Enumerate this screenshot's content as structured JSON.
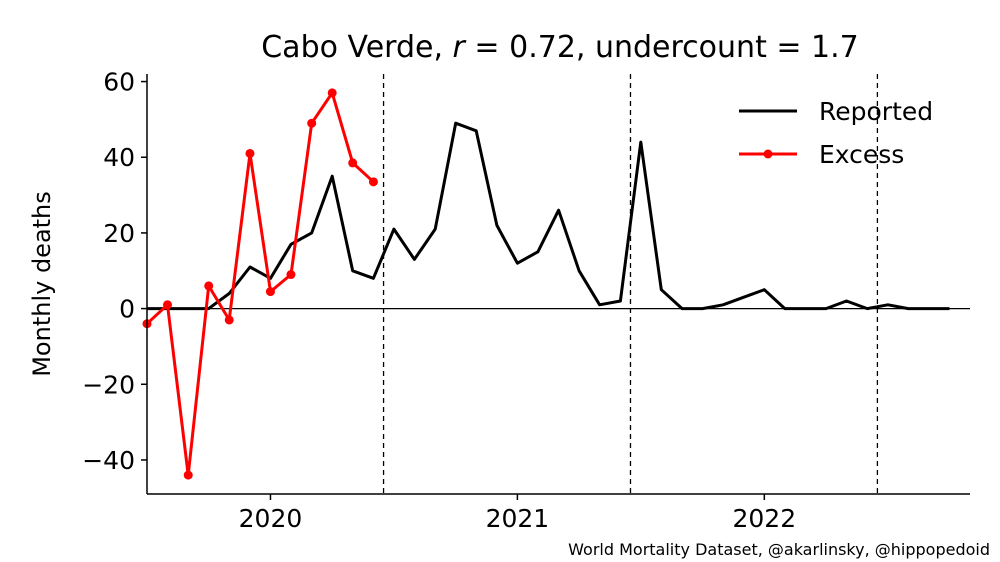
{
  "chart_data": {
    "type": "line",
    "title": {
      "country": "Cabo Verde",
      "r_symbol": "r",
      "r_value": "0.72",
      "undercount_label": "undercount",
      "undercount_value": "1.7"
    },
    "ylabel": "Monthly deaths",
    "ylim": [
      -49,
      62
    ],
    "yticks": [
      {
        "value": 60,
        "label": "60"
      },
      {
        "value": 40,
        "label": "40"
      },
      {
        "value": 20,
        "label": "20"
      },
      {
        "value": 0,
        "label": "0"
      },
      {
        "value": -20,
        "label": "−20"
      },
      {
        "value": -40,
        "label": "−40"
      }
    ],
    "xlim": [
      2019.5,
      2022.833
    ],
    "xticks": [
      {
        "value": 2020.0,
        "label": "2020"
      },
      {
        "value": 2021.0,
        "label": "2021"
      },
      {
        "value": 2022.0,
        "label": "2022"
      }
    ],
    "vlines": [
      2020.458,
      2021.458,
      2022.458
    ],
    "zero_line": true,
    "grid": false,
    "legend_position": "top-right",
    "series": [
      {
        "name": "Reported",
        "color": "#000000",
        "markers": false,
        "points": [
          [
            2019.5,
            0
          ],
          [
            2019.583,
            0
          ],
          [
            2019.667,
            0
          ],
          [
            2019.75,
            0
          ],
          [
            2019.833,
            4
          ],
          [
            2019.917,
            11
          ],
          [
            2020.0,
            8
          ],
          [
            2020.083,
            17
          ],
          [
            2020.167,
            20
          ],
          [
            2020.25,
            35
          ],
          [
            2020.333,
            10
          ],
          [
            2020.417,
            8
          ],
          [
            2020.5,
            21
          ],
          [
            2020.583,
            13
          ],
          [
            2020.667,
            21
          ],
          [
            2020.75,
            49
          ],
          [
            2020.833,
            47
          ],
          [
            2020.917,
            22
          ],
          [
            2021.0,
            12
          ],
          [
            2021.083,
            15
          ],
          [
            2021.167,
            26
          ],
          [
            2021.25,
            10
          ],
          [
            2021.333,
            1
          ],
          [
            2021.417,
            2
          ],
          [
            2021.5,
            44
          ],
          [
            2021.583,
            5
          ],
          [
            2021.667,
            0
          ],
          [
            2021.75,
            0
          ],
          [
            2021.833,
            1
          ],
          [
            2021.917,
            3
          ],
          [
            2022.0,
            5
          ],
          [
            2022.083,
            0
          ],
          [
            2022.167,
            0
          ],
          [
            2022.25,
            0
          ],
          [
            2022.333,
            2
          ],
          [
            2022.417,
            0
          ],
          [
            2022.5,
            1
          ],
          [
            2022.583,
            0
          ],
          [
            2022.667,
            0
          ],
          [
            2022.75,
            0
          ]
        ]
      },
      {
        "name": "Excess",
        "color": "#ff0000",
        "markers": true,
        "points": [
          [
            2019.5,
            -4
          ],
          [
            2019.583,
            1
          ],
          [
            2019.667,
            -44
          ],
          [
            2019.75,
            6
          ],
          [
            2019.833,
            -3
          ],
          [
            2019.917,
            41
          ],
          [
            2020.0,
            4.5
          ],
          [
            2020.083,
            9
          ],
          [
            2020.167,
            49
          ],
          [
            2020.25,
            57
          ],
          [
            2020.333,
            38.5
          ],
          [
            2020.417,
            33.5
          ]
        ]
      }
    ],
    "credit": "World Mortality Dataset, @akarlinsky, @hippopedoid"
  }
}
